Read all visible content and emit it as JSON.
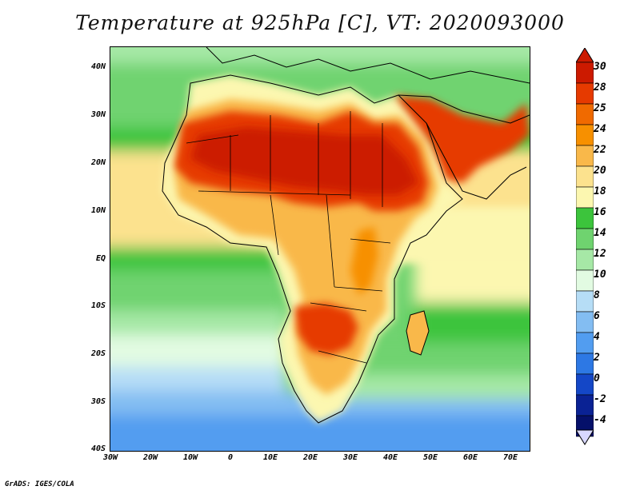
{
  "title": "Temperature at 925hPa [C], VT: 2020093000",
  "credit": "GrADS: IGES/COLA",
  "lat_axis": [
    "40N",
    "30N",
    "20N",
    "10N",
    "EQ",
    "10S",
    "20S",
    "30S",
    "40S"
  ],
  "lon_axis": [
    "30W",
    "20W",
    "10W",
    "0",
    "10E",
    "20E",
    "30E",
    "40E",
    "50E",
    "60E",
    "70E"
  ],
  "extent": {
    "lon_min": -30,
    "lon_max": 75,
    "lat_min": -40,
    "lat_max": 44
  },
  "colorbar": {
    "labels": [
      "30",
      "28",
      "25",
      "24",
      "22",
      "20",
      "18",
      "16",
      "14",
      "12",
      "10",
      "8",
      "6",
      "4",
      "2",
      "0",
      "-2",
      "-4"
    ],
    "colors": [
      "#cc1a00",
      "#e63a00",
      "#f06a00",
      "#f79000",
      "#f9b84a",
      "#fce28e",
      "#fcf7b0",
      "#3cc43c",
      "#6fd36f",
      "#a6e8a6",
      "#e2fbe2",
      "#b6ddf6",
      "#83bdf2",
      "#529df0",
      "#2d78e4",
      "#1447c7",
      "#0a2294",
      "#05106a"
    ],
    "overflow_top_color": "#cc1a00",
    "overflow_bottom_color": "#d8d8ff"
  },
  "icons": [
    "colorbar-triangle-top-icon",
    "colorbar-triangle-bottom-icon"
  ]
}
